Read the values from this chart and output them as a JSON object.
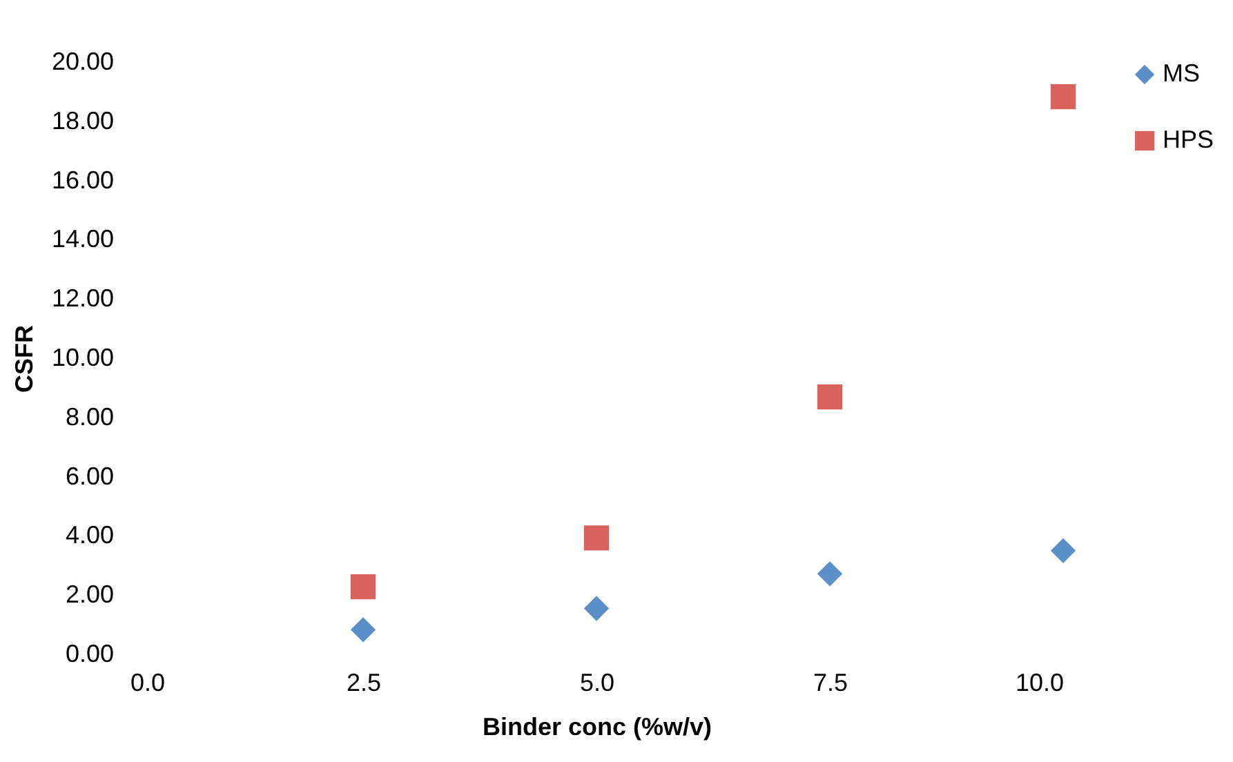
{
  "chart_data": {
    "type": "scatter",
    "xlabel": "Binder conc (%w/v)",
    "ylabel": "CSFR",
    "x": [
      2.5,
      5,
      7.5,
      10
    ],
    "series": [
      {
        "name": "MS",
        "color": "#5b8fc9",
        "marker": "diamond",
        "values": [
          0.83,
          1.55,
          2.72,
          3.5
        ]
      },
      {
        "name": "HPS",
        "color": "#d9625d",
        "marker": "square",
        "values": [
          2.28,
          3.93,
          8.69,
          18.83
        ]
      }
    ],
    "xlim": [
      0,
      10
    ],
    "ylim": [
      0,
      20
    ],
    "xticks": [
      {
        "value": 0,
        "label": "0.0"
      },
      {
        "value": 2.5,
        "label": "2.5"
      },
      {
        "value": 5,
        "label": "5.0"
      },
      {
        "value": 7.5,
        "label": "7.5"
      },
      {
        "value": 10,
        "label": "10.0"
      }
    ],
    "yticks": [
      {
        "value": 0,
        "label": "0.00"
      },
      {
        "value": 2,
        "label": "2.00"
      },
      {
        "value": 4,
        "label": "4.00"
      },
      {
        "value": 6,
        "label": "6.00"
      },
      {
        "value": 8,
        "label": "8.00"
      },
      {
        "value": 10,
        "label": "10.00"
      },
      {
        "value": 12,
        "label": "12.00"
      },
      {
        "value": 14,
        "label": "14.00"
      },
      {
        "value": 16,
        "label": "16.00"
      },
      {
        "value": 18,
        "label": "18.00"
      },
      {
        "value": 20,
        "label": "20.00"
      }
    ],
    "grid": false,
    "legend": "right"
  }
}
